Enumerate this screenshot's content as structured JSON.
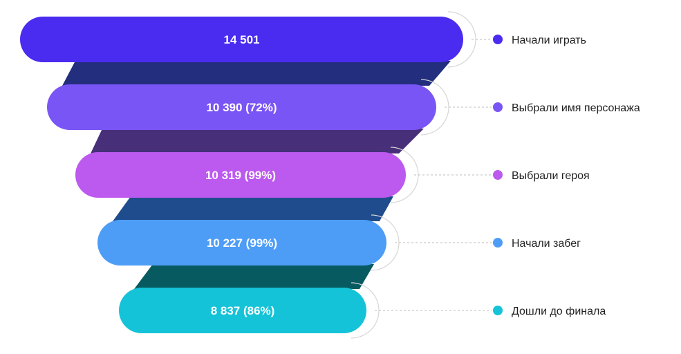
{
  "chart_data": {
    "type": "funnel",
    "title": "",
    "stages": [
      {
        "name": "Начали играть",
        "value": 14501,
        "label": "14 501",
        "color": "#4A2BF0",
        "connector_color": "#232E7E"
      },
      {
        "name": "Выбрали имя персонажа",
        "value": 10390,
        "percent": 72,
        "label": "10 390 (72%)",
        "color": "#7A55F5",
        "connector_color": "#472F79"
      },
      {
        "name": "Выбрали героя",
        "value": 10319,
        "percent": 99,
        "label": "10 319  (99%)",
        "color": "#BC59EE",
        "connector_color": "#1F4C8C"
      },
      {
        "name": "Начали забег",
        "value": 10227,
        "percent": 99,
        "label": "10 227 (99%)",
        "color": "#4D9DF7",
        "connector_color": "#075A60"
      },
      {
        "name": "Дошли до финала",
        "value": 8837,
        "percent": 86,
        "label": "8 837 (86%)",
        "color": "#14C3D7"
      }
    ],
    "legend_position": "right"
  }
}
